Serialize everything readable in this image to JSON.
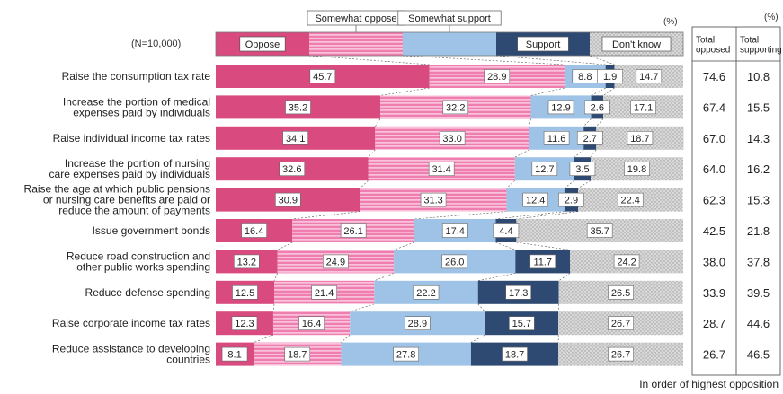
{
  "chart_data": {
    "type": "bar",
    "stacked": true,
    "orientation": "horizontal",
    "sample_label": "(N=10,000)",
    "unit_label": "(%)",
    "footnote": "In order of highest opposition",
    "categories": [
      "Raise the consumption tax rate",
      "Increase the portion of medical\nexpenses paid by individuals",
      "Raise individual income tax rates",
      "Increase the portion of nursing\ncare expenses paid by individuals",
      "Raise the age at which public pensions\nor nursing care benefits are paid or\nreduce the amount of payments",
      "Issue government bonds",
      "Reduce road construction and\nother public works spending",
      "Reduce defense spending",
      "Raise corporate income tax rates",
      "Reduce assistance to developing\ncountries"
    ],
    "series": [
      {
        "name": "Oppose",
        "color": "#d94a7e",
        "pattern": "solid",
        "values": [
          45.7,
          35.2,
          34.1,
          32.6,
          30.9,
          16.4,
          13.2,
          12.5,
          12.3,
          8.1
        ]
      },
      {
        "name": "Somewhat oppose",
        "color": "#f07db0",
        "pattern": "stripes",
        "values": [
          28.9,
          32.2,
          33.0,
          31.4,
          31.3,
          26.1,
          24.9,
          21.4,
          16.4,
          18.7
        ]
      },
      {
        "name": "Somewhat support",
        "color": "#9ec3e6",
        "pattern": "solid",
        "values": [
          8.8,
          12.9,
          11.6,
          12.7,
          12.4,
          17.4,
          26.0,
          22.2,
          28.9,
          27.8
        ]
      },
      {
        "name": "Support",
        "color": "#2e4a72",
        "pattern": "solid",
        "values": [
          1.9,
          2.6,
          2.7,
          3.5,
          2.9,
          4.4,
          11.7,
          17.3,
          15.7,
          18.7
        ]
      },
      {
        "name": "Don't know",
        "color": "#cfcfcf",
        "pattern": "dots",
        "values": [
          14.7,
          17.1,
          18.7,
          19.8,
          22.4,
          35.7,
          24.2,
          26.5,
          26.7,
          26.7
        ]
      }
    ],
    "totals": {
      "headers": [
        "Total\nopposed",
        "Total\nsupporting"
      ],
      "opposed": [
        "74.6",
        "67.4",
        "67.0",
        "64.0",
        "62.3",
        "42.5",
        "38.0",
        "33.9",
        "28.7",
        "26.7"
      ],
      "supporting": [
        "10.8",
        "15.5",
        "14.3",
        "16.2",
        "15.3",
        "21.8",
        "37.8",
        "39.5",
        "44.6",
        "46.5"
      ]
    },
    "xlim": [
      0,
      100
    ],
    "grid": false
  }
}
